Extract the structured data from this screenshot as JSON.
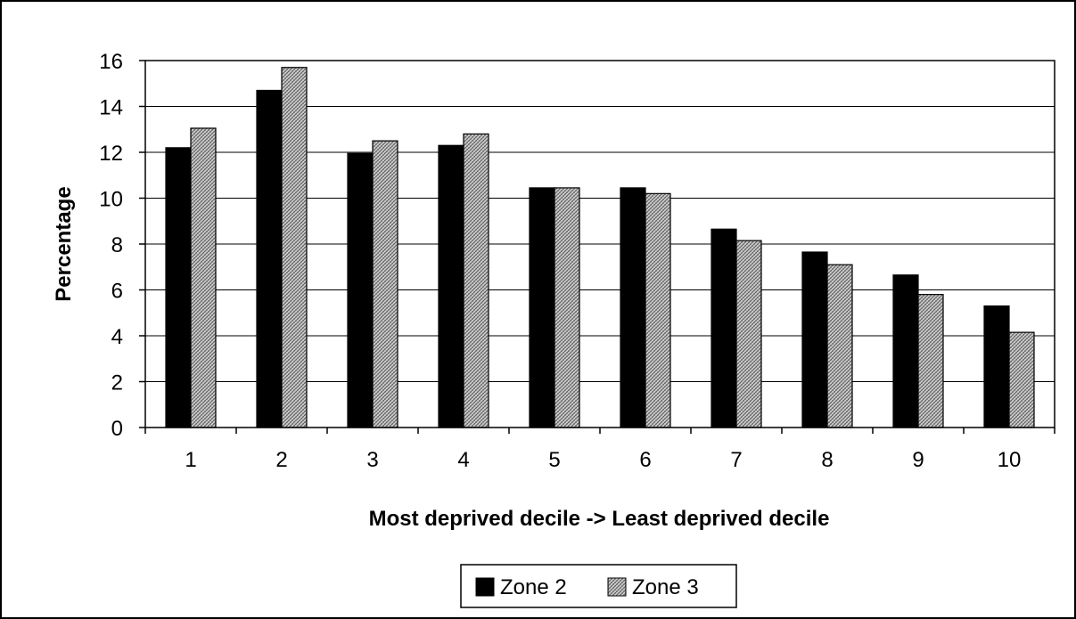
{
  "chart_data": {
    "type": "bar",
    "title": "",
    "xlabel": "Most deprived decile -> Least deprived decile",
    "ylabel": "Percentage",
    "categories": [
      "1",
      "2",
      "3",
      "4",
      "5",
      "6",
      "7",
      "8",
      "9",
      "10"
    ],
    "series": [
      {
        "name": "Zone 2",
        "values": [
          12.2,
          14.7,
          11.95,
          12.3,
          10.45,
          10.45,
          8.65,
          7.65,
          6.65,
          5.3
        ],
        "color": "#000000",
        "pattern": "solid"
      },
      {
        "name": "Zone 3",
        "values": [
          13.05,
          15.7,
          12.5,
          12.8,
          10.45,
          10.2,
          8.15,
          7.1,
          5.8,
          4.15
        ],
        "color": "#a0a0a0",
        "pattern": "crosshatch"
      }
    ],
    "ylim": [
      0,
      16
    ],
    "yticks": [
      "0",
      "2",
      "4",
      "6",
      "8",
      "10",
      "12",
      "14",
      "16"
    ],
    "grid": true,
    "legend": "bottom-center"
  }
}
